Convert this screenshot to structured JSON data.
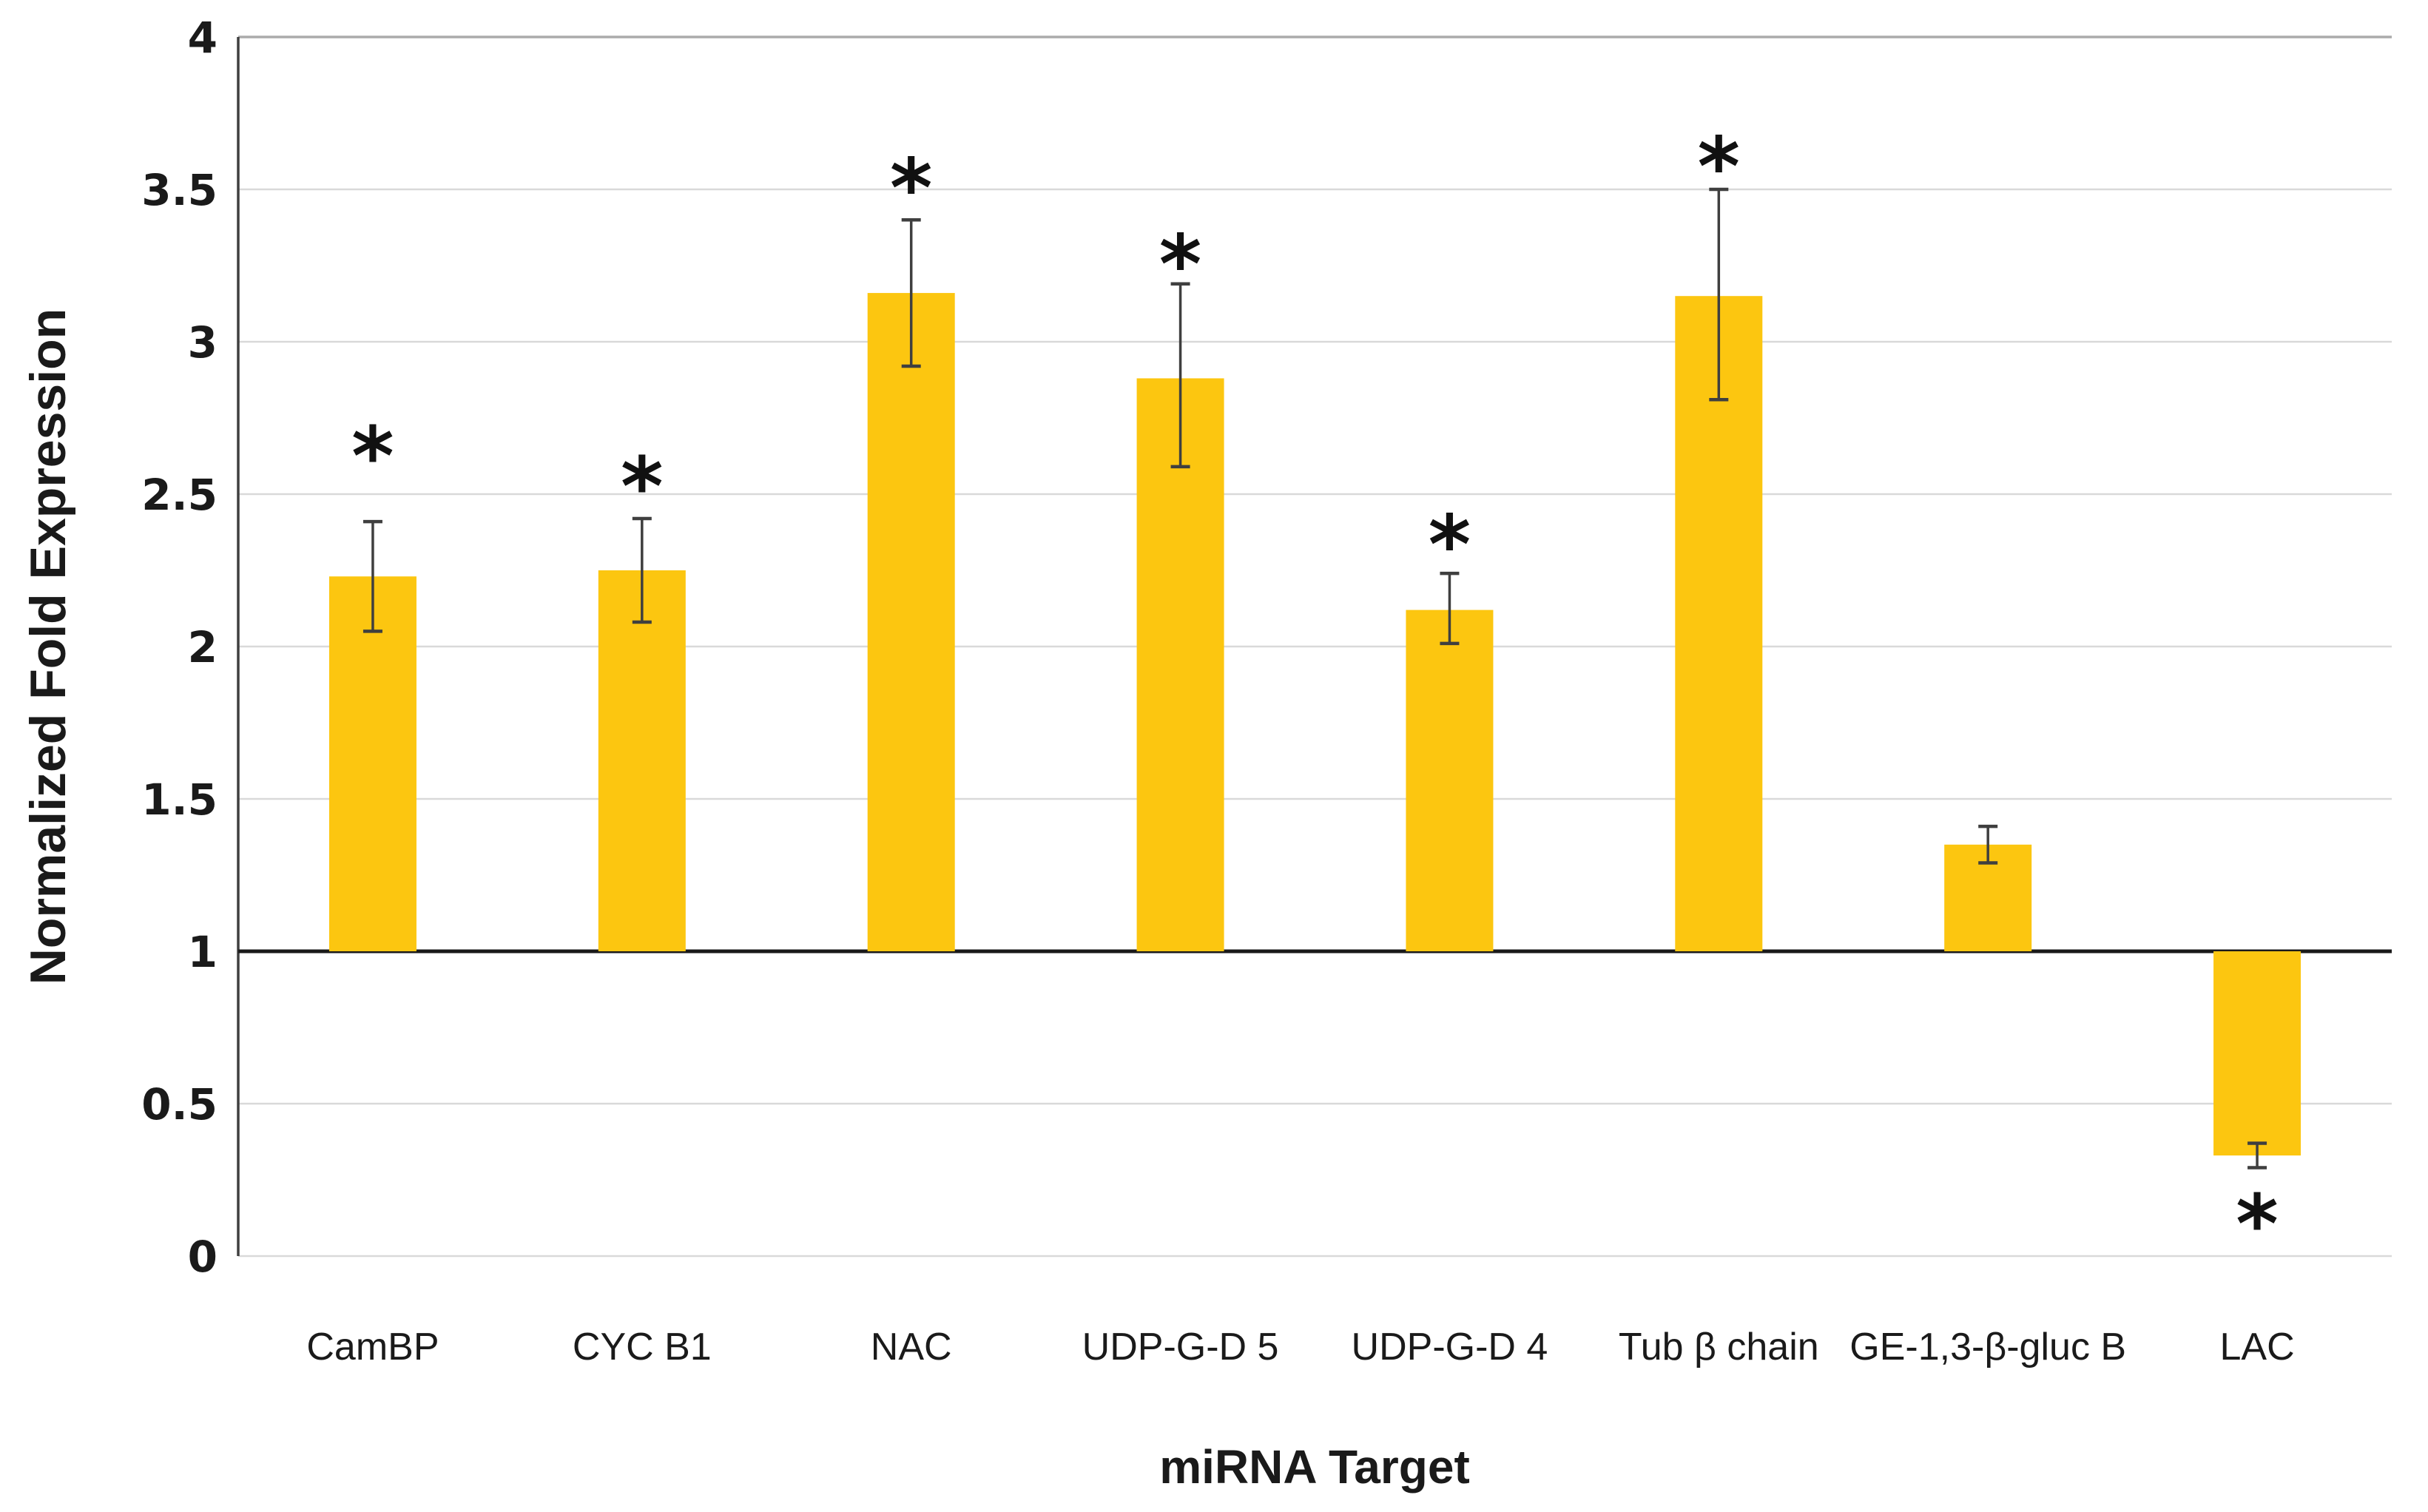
{
  "figure": {
    "background": "#FFFFFF"
  },
  "chart_data": {
    "type": "bar",
    "title": "",
    "xlabel": "miRNA Target",
    "ylabel": "Normalized Fold Expression",
    "ylim": [
      0,
      4
    ],
    "ytick_step": 0.5,
    "grid": true,
    "legend": "none",
    "baseline_value": 1,
    "yticks": [
      {
        "label": "4",
        "value": 4
      },
      {
        "label": "3.5",
        "value": 3.5
      },
      {
        "label": "3",
        "value": 3
      },
      {
        "label": "2.5",
        "value": 2.5
      },
      {
        "label": "2",
        "value": 2
      },
      {
        "label": "1.5",
        "value": 1.5
      },
      {
        "label": "1",
        "value": 1
      },
      {
        "label": "0.5",
        "value": 0.5
      },
      {
        "label": "0",
        "value": 0
      }
    ],
    "categories": [
      "CamBP",
      "CYC B1",
      "NAC",
      "UDP-G-D 5",
      "UDP-G-D 4",
      "Tub β chain",
      "GE-1,3-β-gluc B",
      "LAC"
    ],
    "values": [
      2.23,
      2.25,
      3.16,
      2.88,
      2.12,
      3.15,
      1.35,
      0.33
    ],
    "error_low": [
      2.05,
      2.08,
      2.92,
      2.59,
      2.01,
      2.81,
      1.29,
      0.29
    ],
    "error_high": [
      2.41,
      2.42,
      3.4,
      3.19,
      2.24,
      3.5,
      1.41,
      0.37
    ],
    "significance_marker": "*",
    "significance_positions": [
      2.67,
      2.57,
      3.55,
      3.3,
      2.38,
      3.62,
      null,
      0.15
    ],
    "colors": {
      "bar": "#FCC610",
      "error_bar": "#3F3F3F",
      "gridline": "#D9D9D9",
      "gridline_top": "#ABABAB",
      "baseline": "#1A1A1A",
      "axis_line": "#3F3F3F",
      "text": "#1A1A1A"
    }
  }
}
